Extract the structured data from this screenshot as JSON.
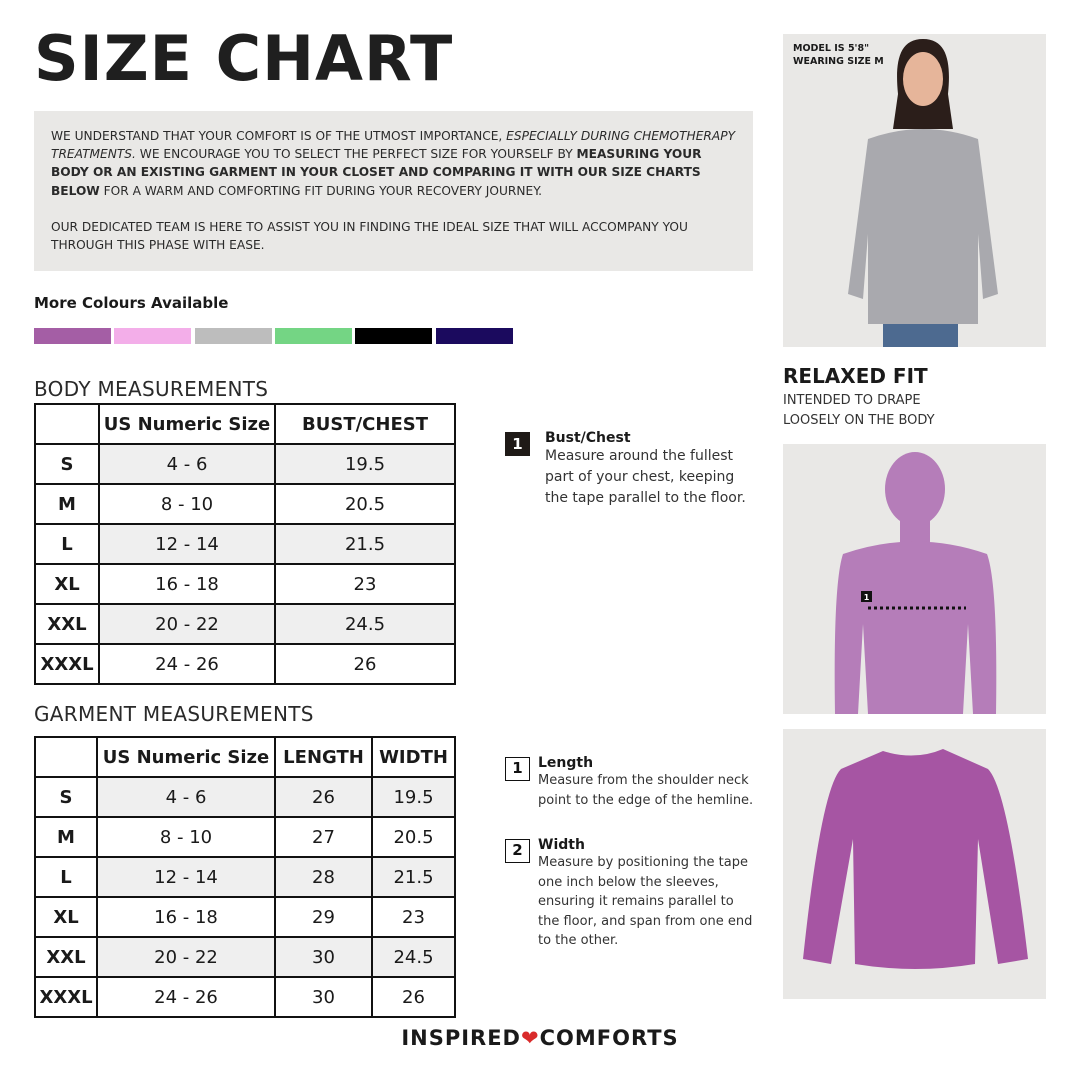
{
  "title": "SIZE CHART",
  "intro": {
    "p1_a": "WE UNDERSTAND THAT YOUR COMFORT IS OF THE UTMOST IMPORTANCE, ",
    "p1_b": "ESPECIALLY DURING CHEMOTHERAPY TREATMENTS.",
    "p1_c": " WE ENCOURAGE YOU TO SELECT THE PERFECT SIZE FOR YOURSELF BY ",
    "p1_d": "MEASURING YOUR BODY OR AN EXISTING GARMENT IN YOUR CLOSET AND COMPARING IT WITH OUR SIZE CHARTS BELOW",
    "p1_e": " FOR A WARM AND COMFORTING FIT DURING YOUR RECOVERY JOURNEY.",
    "p2": "OUR DEDICATED TEAM IS HERE TO ASSIST YOU IN FINDING THE IDEAL SIZE THAT WILL ACCOMPANY YOU THROUGH THIS PHASE WITH EASE."
  },
  "colours": {
    "label": "More Colours Available",
    "swatches": [
      "#a45ea5",
      "#f3aee9",
      "#bdbdbd",
      "#74d584",
      "#000000",
      "#1b0a5e"
    ]
  },
  "body": {
    "heading": "BODY MEASUREMENTS",
    "headers": [
      "",
      "US Numeric Size",
      "BUST/CHEST"
    ],
    "rows": [
      [
        "S",
        "4 - 6",
        "19.5"
      ],
      [
        "M",
        "8 - 10",
        "20.5"
      ],
      [
        "L",
        "12 - 14",
        "21.5"
      ],
      [
        "XL",
        "16 - 18",
        "23"
      ],
      [
        "XXL",
        "20 - 22",
        "24.5"
      ],
      [
        "XXXL",
        "24 - 26",
        "26"
      ]
    ]
  },
  "garment": {
    "heading": "GARMENT MEASUREMENTS",
    "headers": [
      "",
      "US Numeric Size",
      "LENGTH",
      "WIDTH"
    ],
    "rows": [
      [
        "S",
        "4 - 6",
        "26",
        "19.5"
      ],
      [
        "M",
        "8 - 10",
        "27",
        "20.5"
      ],
      [
        "L",
        "12 - 14",
        "28",
        "21.5"
      ],
      [
        "XL",
        "16 - 18",
        "29",
        "23"
      ],
      [
        "XXL",
        "20 - 22",
        "30",
        "24.5"
      ],
      [
        "XXXL",
        "24 - 26",
        "30",
        "26"
      ]
    ]
  },
  "body_guide": {
    "num": "1",
    "title": "Bust/Chest",
    "text": "Measure around the fullest part of your chest, keeping the tape parallel to the floor."
  },
  "garment_guide": [
    {
      "num": "1",
      "title": "Length",
      "text": "Measure from the shoulder neck point to the edge of the hemline."
    },
    {
      "num": "2",
      "title": "Width",
      "text": "Measure by positioning the tape one inch below the sleeves, ensuring it remains parallel to the floor, and span from one end to the other."
    }
  ],
  "model": {
    "line1": "MODEL IS 5'8\"",
    "line2": "WEARING SIZE M"
  },
  "fit": {
    "title": "RELAXED FIT",
    "text1": "INTENDED TO DRAPE",
    "text2": "LOOSELY ON THE BODY"
  },
  "figure_marker": "1",
  "brand": {
    "left": "INSPIRED",
    "right": "COMFORTS",
    "heart_color": "#d92b2b"
  },
  "colors": {
    "body_silhouette": "#b57db9",
    "shirt": "#a655a3",
    "panel": "#e9e8e6"
  }
}
